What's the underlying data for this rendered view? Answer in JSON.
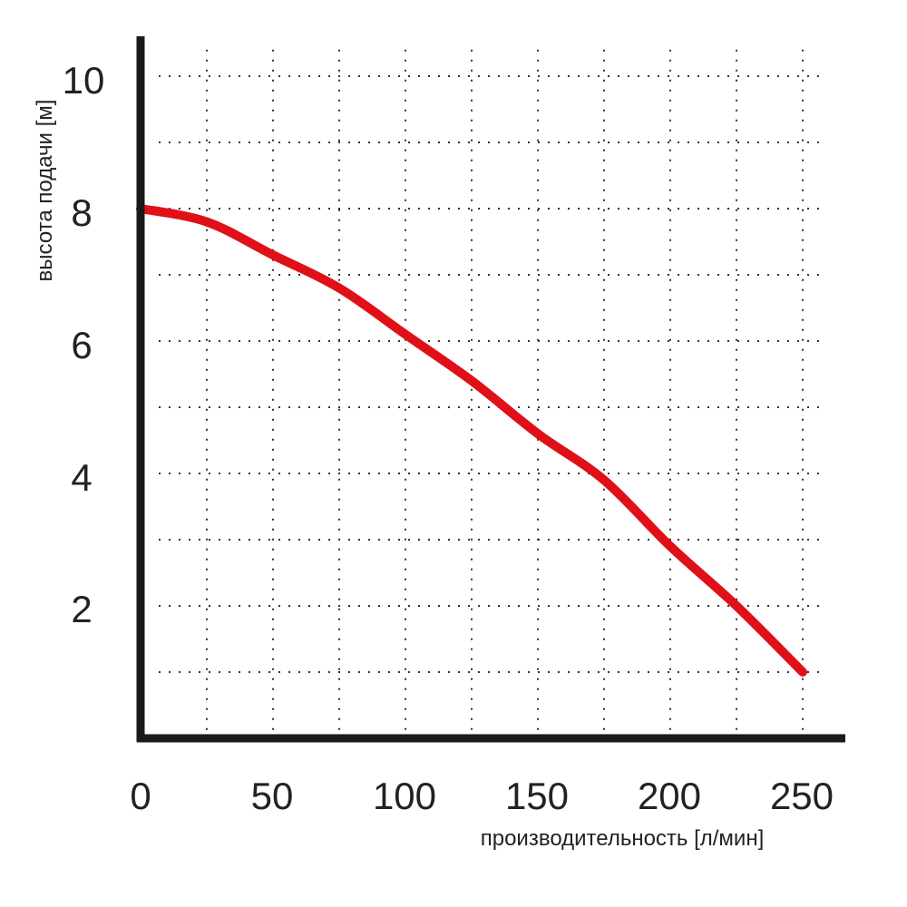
{
  "chart_data": {
    "type": "line",
    "title": "",
    "xlabel": "производительность [л/мин]",
    "ylabel": "высота подачи [м]",
    "xlim": [
      0,
      260
    ],
    "ylim": [
      0,
      10.5
    ],
    "x_ticks": [
      "0",
      "50",
      "100",
      "150",
      "200",
      "250"
    ],
    "y_ticks": [
      "2",
      "4",
      "6",
      "8",
      "10"
    ],
    "grid": "dotted, every 25 l/min and every 1 m",
    "series": [
      {
        "color": "#e01019",
        "x": [
          0,
          25,
          50,
          75,
          100,
          125,
          150,
          175,
          200,
          225,
          250
        ],
        "y": [
          8.0,
          7.8,
          7.3,
          6.8,
          6.1,
          5.4,
          4.6,
          3.9,
          2.9,
          2.0,
          1.0
        ]
      }
    ]
  }
}
